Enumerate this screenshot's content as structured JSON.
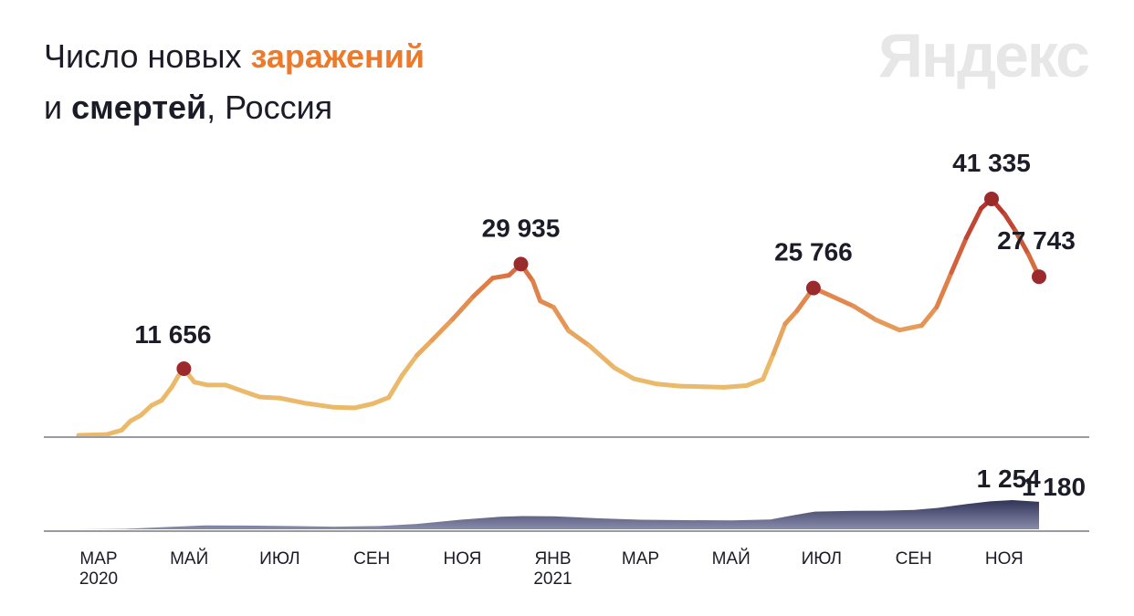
{
  "title": {
    "line1_prefix": "Число новых ",
    "line1_accent": "заражений",
    "line2_prefix": "и ",
    "line2_bold": "смертей",
    "line2_suffix": ", Россия"
  },
  "logo": "Яндекс",
  "colors": {
    "low": "#ebb96a",
    "mid": "#df7a45",
    "high": "#b4302c",
    "marker": "#9a2a2c",
    "deaths_fill": "#5c5f84",
    "axis": "#9a9aa2"
  },
  "chart_data": [
    {
      "type": "line",
      "name": "cases",
      "x_range": [
        "2020-03-01",
        "2021-12-08"
      ],
      "ylim": [
        0,
        41335
      ],
      "points": [
        [
          "2020-03-01",
          0
        ],
        [
          "2020-03-20",
          150
        ],
        [
          "2020-03-30",
          900
        ],
        [
          "2020-04-05",
          2500
        ],
        [
          "2020-04-12",
          3500
        ],
        [
          "2020-04-19",
          5200
        ],
        [
          "2020-04-26",
          6100
        ],
        [
          "2020-05-03",
          8500
        ],
        [
          "2020-05-07",
          10300
        ],
        [
          "2020-05-11",
          11656
        ],
        [
          "2020-05-18",
          9300
        ],
        [
          "2020-05-27",
          8800
        ],
        [
          "2020-06-08",
          8800
        ],
        [
          "2020-06-20",
          7700
        ],
        [
          "2020-07-01",
          6700
        ],
        [
          "2020-07-15",
          6500
        ],
        [
          "2020-08-01",
          5600
        ],
        [
          "2020-08-20",
          4900
        ],
        [
          "2020-09-03",
          4800
        ],
        [
          "2020-09-15",
          5500
        ],
        [
          "2020-09-26",
          6600
        ],
        [
          "2020-10-05",
          10500
        ],
        [
          "2020-10-15",
          14000
        ],
        [
          "2020-10-25",
          16600
        ],
        [
          "2020-11-08",
          20300
        ],
        [
          "2020-11-22",
          24300
        ],
        [
          "2020-12-05",
          27500
        ],
        [
          "2020-12-16",
          28000
        ],
        [
          "2020-12-24",
          29935
        ],
        [
          "2021-01-01",
          27000
        ],
        [
          "2021-01-06",
          23500
        ],
        [
          "2021-01-15",
          22400
        ],
        [
          "2021-01-25",
          18300
        ],
        [
          "2021-02-08",
          15700
        ],
        [
          "2021-02-25",
          11800
        ],
        [
          "2021-03-10",
          9900
        ],
        [
          "2021-03-25",
          9000
        ],
        [
          "2021-04-10",
          8600
        ],
        [
          "2021-04-25",
          8500
        ],
        [
          "2021-05-10",
          8400
        ],
        [
          "2021-05-25",
          8700
        ],
        [
          "2021-06-05",
          9800
        ],
        [
          "2021-06-12",
          14200
        ],
        [
          "2021-06-20",
          19500
        ],
        [
          "2021-06-28",
          21800
        ],
        [
          "2021-07-09",
          25766
        ],
        [
          "2021-07-20",
          24500
        ],
        [
          "2021-08-05",
          22600
        ],
        [
          "2021-08-20",
          20200
        ],
        [
          "2021-09-05",
          18400
        ],
        [
          "2021-09-20",
          19200
        ],
        [
          "2021-09-30",
          22400
        ],
        [
          "2021-10-10",
          28500
        ],
        [
          "2021-10-20",
          34500
        ],
        [
          "2021-10-30",
          39700
        ],
        [
          "2021-11-06",
          41335
        ],
        [
          "2021-11-15",
          38600
        ],
        [
          "2021-11-22",
          35800
        ],
        [
          "2021-12-01",
          31600
        ],
        [
          "2021-12-08",
          27743
        ]
      ],
      "labels": [
        {
          "date": "2020-05-11",
          "value": 11656,
          "text": "11 656"
        },
        {
          "date": "2020-12-24",
          "value": 29935,
          "text": "29 935"
        },
        {
          "date": "2021-07-09",
          "value": 25766,
          "text": "25 766"
        },
        {
          "date": "2021-11-06",
          "value": 41335,
          "text": "41 335"
        },
        {
          "date": "2021-12-08",
          "value": 27743,
          "text": "27 743"
        }
      ]
    },
    {
      "type": "area",
      "name": "deaths",
      "ylim": [
        0,
        1254
      ],
      "points": [
        [
          "2020-03-01",
          0
        ],
        [
          "2020-04-01",
          20
        ],
        [
          "2020-05-01",
          100
        ],
        [
          "2020-05-25",
          170
        ],
        [
          "2020-06-20",
          160
        ],
        [
          "2020-07-20",
          140
        ],
        [
          "2020-08-20",
          115
        ],
        [
          "2020-09-20",
          140
        ],
        [
          "2020-10-15",
          230
        ],
        [
          "2020-11-15",
          420
        ],
        [
          "2020-12-10",
          540
        ],
        [
          "2020-12-25",
          570
        ],
        [
          "2021-01-15",
          560
        ],
        [
          "2021-02-15",
          470
        ],
        [
          "2021-03-15",
          410
        ],
        [
          "2021-04-15",
          390
        ],
        [
          "2021-05-15",
          380
        ],
        [
          "2021-06-10",
          420
        ],
        [
          "2021-06-25",
          600
        ],
        [
          "2021-07-10",
          760
        ],
        [
          "2021-08-05",
          790
        ],
        [
          "2021-08-25",
          800
        ],
        [
          "2021-09-15",
          830
        ],
        [
          "2021-10-01",
          920
        ],
        [
          "2021-10-20",
          1080
        ],
        [
          "2021-11-05",
          1200
        ],
        [
          "2021-11-20",
          1254
        ],
        [
          "2021-12-08",
          1180
        ]
      ],
      "labels": [
        {
          "date": "2021-11-20",
          "value": 1254,
          "text": "1 254"
        },
        {
          "date": "2021-12-08",
          "value": 1180,
          "text": "1 180"
        }
      ]
    }
  ],
  "x_ticks": [
    {
      "date": "2020-03-01",
      "label": "МАР",
      "year": "2020"
    },
    {
      "date": "2020-05-01",
      "label": "МАЙ",
      "year": ""
    },
    {
      "date": "2020-07-01",
      "label": "ИЮЛ",
      "year": ""
    },
    {
      "date": "2020-09-01",
      "label": "СЕН",
      "year": ""
    },
    {
      "date": "2020-11-01",
      "label": "НОЯ",
      "year": ""
    },
    {
      "date": "2021-01-01",
      "label": "ЯНВ",
      "year": "2021"
    },
    {
      "date": "2021-03-01",
      "label": "МАР",
      "year": ""
    },
    {
      "date": "2021-05-01",
      "label": "МАЙ",
      "year": ""
    },
    {
      "date": "2021-07-01",
      "label": "ИЮЛ",
      "year": ""
    },
    {
      "date": "2021-09-01",
      "label": "СЕН",
      "year": ""
    },
    {
      "date": "2021-11-01",
      "label": "НОЯ",
      "year": ""
    }
  ]
}
